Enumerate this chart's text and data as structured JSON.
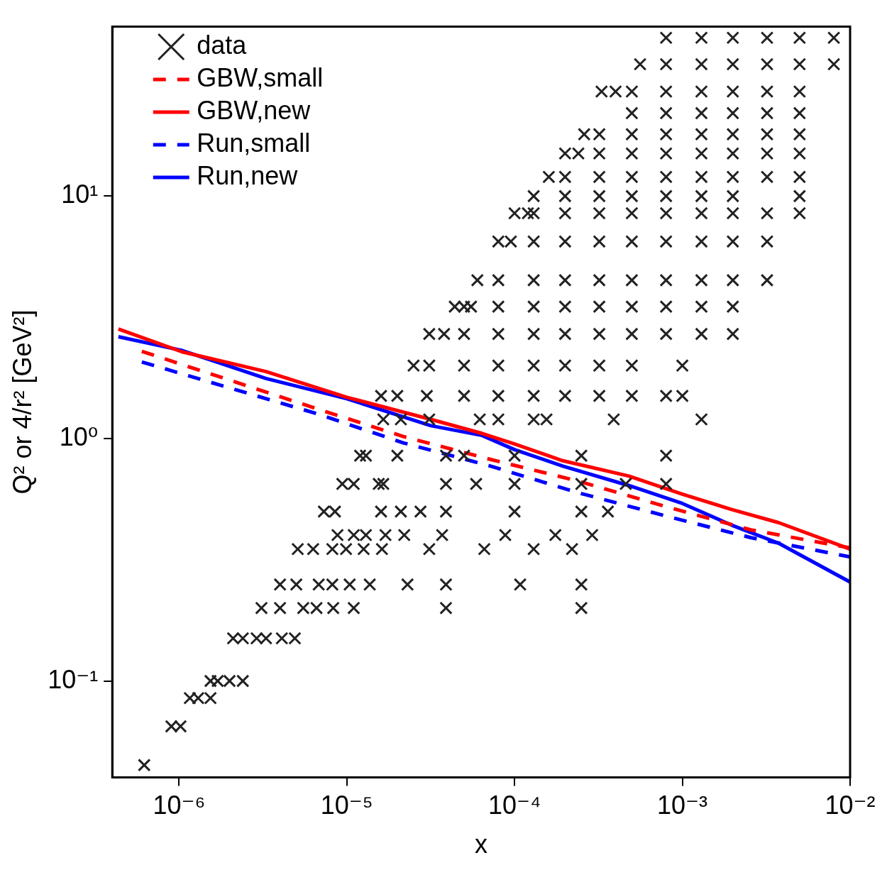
{
  "chart_data": {
    "type": "scatter",
    "xlabel": "x",
    "ylabel": "Q² or 4/r² [GeV²]",
    "log": "xy",
    "grid": false,
    "legend": "top left",
    "xlim": [
      4e-07,
      0.01
    ],
    "ylim": [
      0.04,
      50
    ],
    "xticks": [
      {
        "value": 1e-06,
        "label": "10⁻⁶"
      },
      {
        "value": 1e-05,
        "label": "10⁻⁵"
      },
      {
        "value": 0.0001,
        "label": "10⁻⁴"
      },
      {
        "value": 0.001,
        "label": "10⁻³"
      },
      {
        "value": 0.01,
        "label": "10⁻²"
      }
    ],
    "yticks": [
      {
        "value": 0.1,
        "label": "10⁻¹"
      },
      {
        "value": 1,
        "label": "10⁰"
      },
      {
        "value": 10,
        "label": "10¹"
      }
    ],
    "series": [
      {
        "name": "data",
        "type": "scatter",
        "marker": "cross",
        "color": "#222222",
        "x": [
          0.0008,
          0.0013,
          0.002,
          0.0032,
          0.005,
          0.008,
          0.00056,
          0.0008,
          0.0013,
          0.002,
          0.0032,
          0.005,
          0.008,
          0.00033,
          0.0004,
          0.0005,
          0.0008,
          0.0013,
          0.002,
          0.0032,
          0.005,
          0.0005,
          0.0008,
          0.0013,
          0.002,
          0.0032,
          0.005,
          0.00026,
          0.00032,
          0.0005,
          0.0008,
          0.0013,
          0.002,
          0.0032,
          0.005,
          0.0002,
          0.00024,
          0.00032,
          0.0005,
          0.0008,
          0.0013,
          0.002,
          0.0032,
          0.005,
          0.00016,
          0.0002,
          0.00032,
          0.0005,
          0.0008,
          0.0013,
          0.002,
          0.0032,
          0.005,
          0.00013,
          0.0002,
          0.00032,
          0.0005,
          0.0008,
          0.0013,
          0.002,
          0.005,
          0.0001,
          0.00012,
          0.00013,
          0.0002,
          0.00032,
          0.0005,
          0.0008,
          0.0013,
          0.002,
          0.0032,
          0.005,
          8e-05,
          9.5e-05,
          0.00013,
          0.0002,
          0.00032,
          0.0005,
          0.0008,
          0.0013,
          0.002,
          0.0032,
          6e-05,
          8e-05,
          0.00013,
          0.0002,
          0.00032,
          0.0005,
          0.0008,
          0.0013,
          0.002,
          0.0032,
          4.4e-05,
          5e-05,
          5.5e-05,
          8e-05,
          0.00013,
          0.0002,
          0.00032,
          0.0005,
          0.0008,
          0.0013,
          0.002,
          3.1e-05,
          3.8e-05,
          5e-05,
          8e-05,
          0.00013,
          0.0002,
          0.00032,
          0.0005,
          0.0008,
          0.0013,
          0.002,
          2.5e-05,
          3.1e-05,
          5e-05,
          8e-05,
          0.00013,
          0.0002,
          0.00032,
          0.0005,
          0.001,
          1.6e-05,
          2e-05,
          3e-05,
          5e-05,
          8e-05,
          0.00013,
          0.0002,
          0.00032,
          0.0005,
          0.0008,
          0.001,
          1.65e-05,
          2.1e-05,
          3.1e-05,
          6.2e-05,
          8e-05,
          0.00013,
          0.000155,
          0.00039,
          0.0013,
          1.2e-05,
          1.3e-05,
          2e-05,
          3.9e-05,
          5e-05,
          0.0001,
          0.00025,
          0.0008,
          9.4e-06,
          1.1e-05,
          1.55e-05,
          1.65e-05,
          3.9e-05,
          5.9e-05,
          0.0001,
          0.00025,
          0.00046,
          0.0008,
          7.3e-06,
          8.5e-06,
          1.6e-05,
          2.1e-05,
          2.75e-05,
          3.9e-05,
          0.0001,
          0.00025,
          0.00036,
          8.8e-06,
          1.1e-05,
          1.3e-05,
          1.7e-05,
          2.2e-05,
          3.7e-05,
          8.8e-05,
          0.000175,
          0.00029,
          5.1e-06,
          6.3e-06,
          8.2e-06,
          9.9e-06,
          1.26e-05,
          1.62e-05,
          3.1e-05,
          6.6e-05,
          0.00013,
          0.00022,
          4e-06,
          5e-06,
          6.8e-06,
          8.2e-06,
          1.04e-05,
          1.37e-05,
          2.3e-05,
          3.9e-05,
          0.000108,
          0.00025,
          3.1e-06,
          4e-06,
          5.5e-06,
          6.6e-06,
          8.3e-06,
          1.1e-05,
          3.9e-05,
          0.00025,
          2.1e-06,
          2.4e-06,
          2.9e-06,
          3.3e-06,
          4.1e-06,
          4.9e-06,
          1.54e-06,
          1.7e-06,
          2e-06,
          2.4e-06,
          1.16e-06,
          1.3e-06,
          1.54e-06,
          9e-07,
          1.02e-06,
          6.2e-07
        ],
        "values": [
          45,
          45,
          45,
          45,
          45,
          45,
          35,
          35,
          35,
          35,
          35,
          35,
          35,
          27,
          27,
          27,
          27,
          27,
          27,
          27,
          27,
          22,
          22,
          22,
          22,
          22,
          22,
          18,
          18,
          18,
          18,
          18,
          18,
          18,
          18,
          15,
          15,
          15,
          15,
          15,
          15,
          15,
          15,
          15,
          12,
          12,
          12,
          12,
          12,
          12,
          12,
          12,
          12,
          10,
          10,
          10,
          10,
          10,
          10,
          10,
          10,
          8.5,
          8.5,
          8.5,
          8.5,
          8.5,
          8.5,
          8.5,
          8.5,
          8.5,
          8.5,
          8.5,
          6.5,
          6.5,
          6.5,
          6.5,
          6.5,
          6.5,
          6.5,
          6.5,
          6.5,
          6.5,
          4.5,
          4.5,
          4.5,
          4.5,
          4.5,
          4.5,
          4.5,
          4.5,
          4.5,
          4.5,
          3.5,
          3.5,
          3.5,
          3.5,
          3.5,
          3.5,
          3.5,
          3.5,
          3.5,
          3.5,
          3.5,
          2.7,
          2.7,
          2.7,
          2.7,
          2.7,
          2.7,
          2.7,
          2.7,
          2.7,
          2.7,
          2.7,
          2,
          2,
          2,
          2,
          2,
          2,
          2,
          2,
          2,
          1.5,
          1.5,
          1.5,
          1.5,
          1.5,
          1.5,
          1.5,
          1.5,
          1.5,
          1.5,
          1.5,
          1.2,
          1.2,
          1.2,
          1.2,
          1.2,
          1.2,
          1.2,
          1.2,
          1.2,
          0.85,
          0.85,
          0.85,
          0.85,
          0.85,
          0.85,
          0.85,
          0.85,
          0.65,
          0.65,
          0.65,
          0.65,
          0.65,
          0.65,
          0.65,
          0.65,
          0.65,
          0.65,
          0.5,
          0.5,
          0.5,
          0.5,
          0.5,
          0.5,
          0.5,
          0.5,
          0.5,
          0.4,
          0.4,
          0.4,
          0.4,
          0.4,
          0.4,
          0.4,
          0.4,
          0.4,
          0.35,
          0.35,
          0.35,
          0.35,
          0.35,
          0.35,
          0.35,
          0.35,
          0.35,
          0.35,
          0.25,
          0.25,
          0.25,
          0.25,
          0.25,
          0.25,
          0.25,
          0.25,
          0.25,
          0.25,
          0.2,
          0.2,
          0.2,
          0.2,
          0.2,
          0.2,
          0.2,
          0.2,
          0.15,
          0.15,
          0.15,
          0.15,
          0.15,
          0.15,
          0.1,
          0.1,
          0.1,
          0.1,
          0.085,
          0.085,
          0.085,
          0.065,
          0.065,
          0.045
        ]
      },
      {
        "name": "GBW,small",
        "type": "line",
        "line_style": "dashed",
        "color": "#ff0000",
        "x": [
          6e-07,
          6.8e-06,
          2.17e-05,
          7.2e-05,
          0.000235,
          0.00079,
          0.00257,
          0.01
        ],
        "values": [
          2.29,
          1.32,
          1.02,
          0.82,
          0.67,
          0.525,
          0.42,
          0.354
        ]
      },
      {
        "name": "GBW,new",
        "type": "line",
        "line_style": "solid",
        "color": "#ff0000",
        "x": [
          4.35e-07,
          1.04e-06,
          3.3e-06,
          1e-05,
          3.17e-05,
          6.4e-05,
          0.0001,
          0.000194,
          0.00048,
          0.001,
          0.00196,
          0.00375,
          0.01
        ],
        "values": [
          2.83,
          2.28,
          1.89,
          1.48,
          1.2,
          1.05,
          0.95,
          0.81,
          0.7,
          0.59,
          0.51,
          0.45,
          0.35
        ]
      },
      {
        "name": "Run,small",
        "type": "line",
        "line_style": "dashed",
        "color": "#0000ff",
        "x": [
          6e-07,
          6.8e-06,
          2.17e-05,
          7.2e-05,
          0.000235,
          0.00079,
          0.00257,
          0.01
        ],
        "values": [
          2.07,
          1.26,
          0.96,
          0.77,
          0.6,
          0.48,
          0.39,
          0.325
        ]
      },
      {
        "name": "Run,new",
        "type": "line",
        "line_style": "solid",
        "color": "#0000ff",
        "x": [
          4.35e-07,
          1.04e-06,
          3.3e-06,
          1e-05,
          3.17e-05,
          6.4e-05,
          0.0001,
          0.000194,
          0.00048,
          0.001,
          0.00196,
          0.00375,
          0.01
        ],
        "values": [
          2.63,
          2.31,
          1.77,
          1.46,
          1.13,
          1.03,
          0.9,
          0.77,
          0.64,
          0.54,
          0.44,
          0.37,
          0.256
        ]
      }
    ]
  }
}
